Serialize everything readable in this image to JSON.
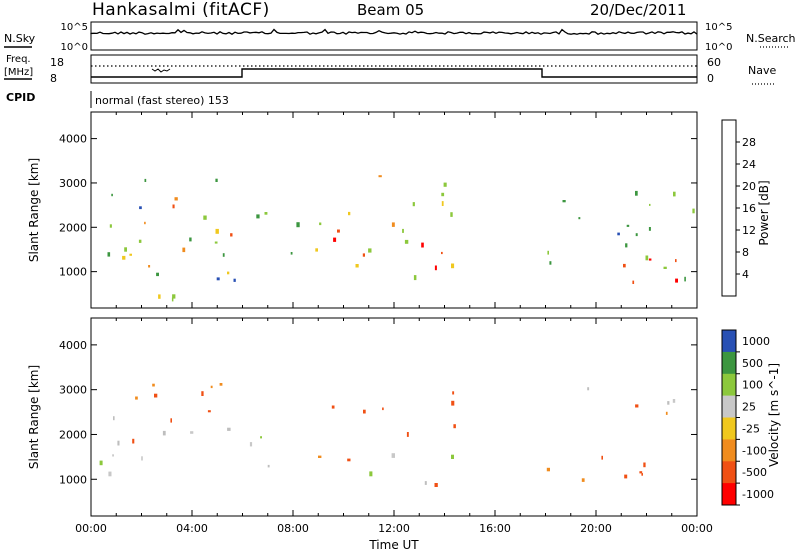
{
  "header": {
    "station": "Hankasalmi (fitACF)",
    "beam": "Beam 05",
    "date": "20/Dec/2011"
  },
  "top_panel": {
    "nsky_label": "N.Sky",
    "nsearch_label": "N.Search",
    "left_ticks": [
      "10^5",
      "10^0"
    ],
    "right_ticks": [
      "10^5",
      "10^0"
    ]
  },
  "freq_panel": {
    "freq_label_1": "Freq.",
    "freq_label_2": "[MHz]",
    "left_ticks": [
      "18",
      "8"
    ],
    "right_ticks": [
      "60",
      "0"
    ],
    "nave_label": "Nave",
    "cpid_label": "CPID",
    "cpid_value": "normal (fast stereo) 153",
    "freq_dots": "....................................",
    "nave_dots": "....."
  },
  "colors": {
    "power_scale": [
      "#0000ff",
      "#2850b4",
      "#3c9640",
      "#8cc83c",
      "#f0c81e",
      "#f08c1e",
      "#f05014",
      "#ff0000"
    ],
    "velocity_scale": [
      "#ff0000",
      "#f05014",
      "#f08c1e",
      "#f0c81e",
      "#c8c8c8",
      "#8cc83c",
      "#3c9640",
      "#2850b4"
    ],
    "ground_scatter": "#bebebe"
  },
  "chart_data": [
    {
      "type": "heatmap",
      "title": "",
      "xlabel": "",
      "ylabel": "Slant Range [km]",
      "x_ticks": [
        "00:00",
        "04:00",
        "08:00",
        "12:00",
        "16:00",
        "20:00",
        "00:00"
      ],
      "xlim_hours": [
        0,
        24
      ],
      "y_ticks": [
        "1000",
        "2000",
        "3000",
        "4000"
      ],
      "ylim_km": [
        180,
        4600
      ],
      "colorbar": {
        "label": "Power [dB]",
        "ticks": [
          "4",
          "8",
          "12",
          "16",
          "20",
          "24",
          "28"
        ],
        "range": [
          0,
          32
        ]
      },
      "regions": [
        {
          "t_start": 0.0,
          "t_end": 6.0,
          "r_low": 400,
          "r_high": 3200,
          "level": 12
        },
        {
          "t_start": 2.0,
          "t_end": 6.0,
          "r_low": 1800,
          "r_high": 2700,
          "level": 22
        },
        {
          "t_start": 0.5,
          "t_end": 6.0,
          "r_low": 900,
          "r_high": 1700,
          "level": 18
        },
        {
          "t_start": 6.0,
          "t_end": 8.5,
          "r_low": 1000,
          "r_high": 2500,
          "level": 14
        },
        {
          "t_start": 8.5,
          "t_end": 14.5,
          "r_low": 900,
          "r_high": 3200,
          "level": 16
        },
        {
          "t_start": 9.0,
          "t_end": 14.5,
          "r_low": 1000,
          "r_high": 2200,
          "level": 27
        },
        {
          "t_start": 18.0,
          "t_end": 24.0,
          "r_low": 700,
          "r_high": 3100,
          "level": 12
        },
        {
          "t_start": 18.5,
          "t_end": 24.0,
          "r_low": 700,
          "r_high": 1500,
          "level": 30
        }
      ]
    },
    {
      "type": "heatmap",
      "title": "",
      "xlabel": "Time UT",
      "ylabel": "Slant Range [km]",
      "x_ticks": [
        "00:00",
        "04:00",
        "08:00",
        "12:00",
        "16:00",
        "20:00",
        "00:00"
      ],
      "xlim_hours": [
        0,
        24
      ],
      "y_ticks": [
        "1000",
        "2000",
        "3000",
        "4000"
      ],
      "ylim_km": [
        180,
        4600
      ],
      "colorbar": {
        "label": "Velocity [m s^-1]",
        "ticks": [
          "1000",
          "500",
          "100",
          "25",
          "-25",
          "-100",
          "-500",
          "-1000"
        ]
      },
      "regions": [
        {
          "t_start": 0.0,
          "t_end": 4.0,
          "r_low": 900,
          "r_high": 1800,
          "level": 150
        },
        {
          "t_start": 0.0,
          "t_end": 6.0,
          "r_low": 1800,
          "r_high": 3200,
          "level": 0
        },
        {
          "t_start": 2.0,
          "t_end": 6.0,
          "r_low": 2000,
          "r_high": 3200,
          "level": -200
        },
        {
          "t_start": 6.0,
          "t_end": 8.5,
          "r_low": 1300,
          "r_high": 2300,
          "level": 120
        },
        {
          "t_start": 8.5,
          "t_end": 14.5,
          "r_low": 900,
          "r_high": 2000,
          "level": 0
        },
        {
          "t_start": 9.0,
          "t_end": 14.5,
          "r_low": 2000,
          "r_high": 3200,
          "level": -200
        },
        {
          "t_start": 18.0,
          "t_end": 24.0,
          "r_low": 700,
          "r_high": 1700,
          "level": -200
        },
        {
          "t_start": 18.5,
          "t_end": 24.0,
          "r_low": 2300,
          "r_high": 3100,
          "level": 0
        }
      ]
    }
  ]
}
